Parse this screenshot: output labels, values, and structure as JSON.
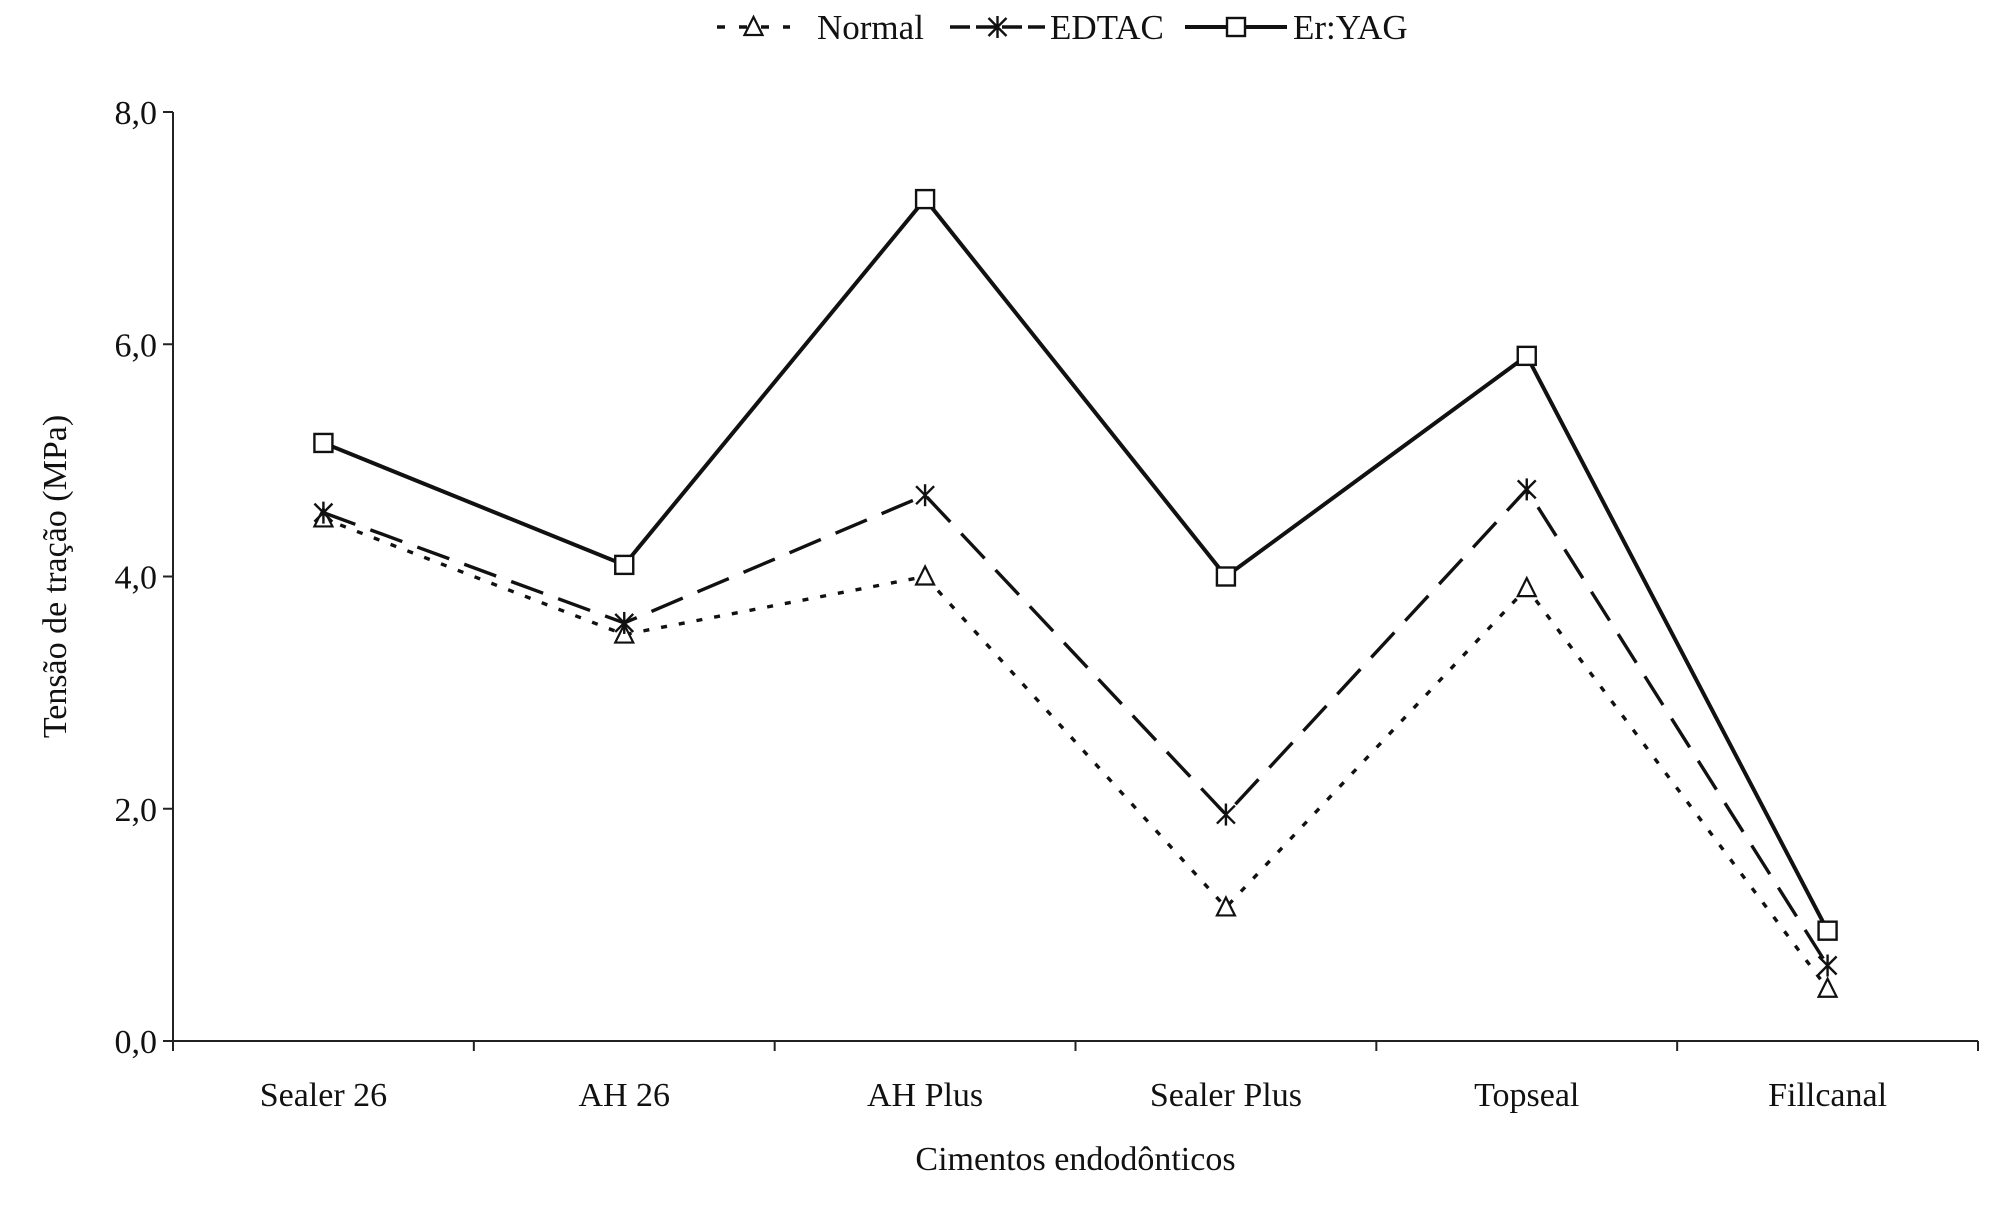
{
  "chart_data": {
    "type": "line",
    "title": "",
    "xlabel": "Cimentos endodônticos",
    "ylabel": "Tensão de tração (MPa)",
    "categories": [
      "Sealer 26",
      "AH 26",
      "AH Plus",
      "Sealer Plus",
      "Topseal",
      "Fillcanal"
    ],
    "ylim": [
      0,
      8
    ],
    "yticks": [
      "0,0",
      "2,0",
      "4,0",
      "6,0",
      "8,0"
    ],
    "grid": false,
    "legend_position": "top",
    "series": [
      {
        "name": "Normal",
        "marker": "triangle",
        "line_style": "dotted",
        "values": [
          4.5,
          3.5,
          4.0,
          1.15,
          3.9,
          0.45
        ]
      },
      {
        "name": "EDTAC",
        "marker": "asterisk",
        "line_style": "dashed",
        "values": [
          4.55,
          3.6,
          4.7,
          1.95,
          4.75,
          0.65
        ]
      },
      {
        "name": "Er:YAG",
        "marker": "square",
        "line_style": "solid",
        "values": [
          5.15,
          4.1,
          7.25,
          4.0,
          5.9,
          0.95
        ]
      }
    ],
    "colors": {
      "line": "#111111",
      "axis": "#222222",
      "background": "#ffffff"
    }
  }
}
